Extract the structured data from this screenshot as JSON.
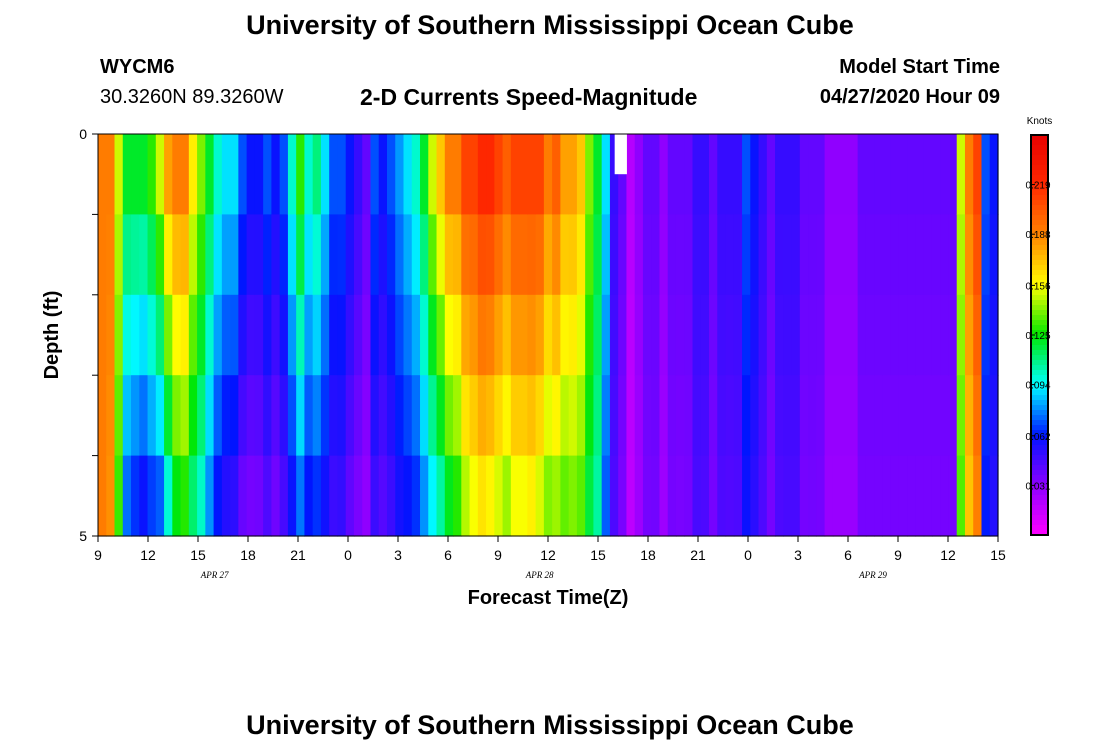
{
  "header": {
    "title": "University of Southern Mississippi Ocean Cube",
    "station": "WYCM6",
    "coords": "30.3260N 89.3260W",
    "subtitle": "2-D Currents Speed-Magnitude",
    "model_label": "Model Start Time",
    "model_time": "04/27/2020 Hour 09"
  },
  "footer": {
    "title": "University of Southern Mississippi Ocean Cube"
  },
  "chart_data": {
    "type": "heatmap",
    "title": "2-D Currents Speed-Magnitude",
    "xlabel": "Forecast Time(Z)",
    "ylabel": "Depth (ft)",
    "x_ticks": [
      "9",
      "12",
      "15",
      "18",
      "21",
      "0",
      "3",
      "6",
      "9",
      "12",
      "15",
      "18",
      "21",
      "0",
      "3",
      "6",
      "9",
      "12",
      "15"
    ],
    "x_tick_hours": [
      0,
      3,
      6,
      9,
      12,
      15,
      18,
      21,
      24,
      27,
      30,
      33,
      36,
      39,
      42,
      45,
      48,
      51,
      54
    ],
    "date_labels": [
      {
        "label": "APR 27",
        "hour": 7
      },
      {
        "label": "APR 28",
        "hour": 26.5
      },
      {
        "label": "APR 29",
        "hour": 46.5
      }
    ],
    "y_ticks": [
      "0",
      "5"
    ],
    "ylim": [
      0,
      5
    ],
    "xlim_hours": [
      0,
      54
    ],
    "colorbar": {
      "label": "Knots",
      "ticks": [
        "0.219",
        "0.188",
        "0.156",
        "0.125",
        "0.094",
        "0.062",
        "0.031"
      ],
      "tick_values": [
        0.219,
        0.188,
        0.156,
        0.125,
        0.094,
        0.062,
        0.031
      ],
      "range": [
        0.0,
        0.25
      ]
    },
    "depth_layers": 5,
    "missing": [
      {
        "hour": 31,
        "layer": 0
      }
    ],
    "profiles": [
      0.19,
      0.19,
      0.15,
      0.12,
      0.12,
      0.12,
      0.13,
      0.15,
      0.18,
      0.19,
      0.19,
      0.16,
      0.14,
      0.12,
      0.1,
      0.09,
      0.09,
      0.07,
      0.06,
      0.06,
      0.07,
      0.06,
      0.07,
      0.1,
      0.13,
      0.1,
      0.11,
      0.09,
      0.07,
      0.07,
      0.06,
      0.05,
      0.04,
      0.07,
      0.06,
      0.07,
      0.08,
      0.09,
      0.1,
      0.12,
      0.15,
      0.17,
      0.19,
      0.19,
      0.21,
      0.21,
      0.22,
      0.22,
      0.21,
      0.2,
      0.21,
      0.21,
      0.21,
      0.21,
      0.19,
      0.2,
      0.18,
      0.18,
      0.17,
      0.14,
      0.12,
      0.09,
      0.05,
      0.04,
      0.02,
      0.03,
      0.04,
      0.04,
      0.03,
      0.04,
      0.04,
      0.04,
      0.05,
      0.05,
      0.04,
      0.05,
      0.05,
      0.05,
      0.07,
      0.06,
      0.05,
      0.04,
      0.05,
      0.05,
      0.05,
      0.04,
      0.04,
      0.04,
      0.03,
      0.03,
      0.03,
      0.03,
      0.04,
      0.04,
      0.04,
      0.04,
      0.04,
      0.04,
      0.04,
      0.04,
      0.04,
      0.04,
      0.04,
      0.04,
      0.15,
      0.19,
      0.21,
      0.07,
      0.06
    ],
    "depth_factors": [
      [
        1.0,
        0.97,
        0.88,
        0.62,
        0.55,
        0.5,
        0.52,
        0.48,
        0.55,
        0.65,
        0.68,
        0.7,
        0.72,
        0.66,
        0.62,
        0.6,
        0.58,
        0.56,
        0.6,
        0.62,
        0.64,
        0.62,
        0.66,
        0.6,
        0.58,
        0.62,
        0.6,
        0.65,
        0.7,
        0.72,
        0.68,
        0.7,
        0.75,
        0.7,
        0.72,
        0.7,
        0.72,
        0.68,
        0.66,
        0.66,
        0.62,
        0.62,
        0.64,
        0.68,
        0.7,
        0.74,
        0.74,
        0.72,
        0.72,
        0.72,
        0.74,
        0.74,
        0.76,
        0.72,
        0.74,
        0.72,
        0.76,
        0.78,
        0.8,
        0.84,
        0.88,
        0.8,
        0.9,
        0.88,
        0.9,
        0.88,
        0.9,
        0.92,
        0.88,
        0.9,
        0.88,
        0.9,
        0.92,
        0.9,
        0.9,
        0.9,
        0.88,
        0.9,
        0.85,
        0.88,
        0.9,
        0.9,
        0.9,
        0.92,
        0.92,
        0.9,
        0.92,
        0.9,
        0.92,
        0.92,
        0.92,
        0.92,
        0.9,
        0.9,
        0.9,
        0.9,
        0.9,
        0.9,
        0.9,
        0.9,
        0.9,
        0.9,
        0.9,
        0.9,
        0.9,
        0.9,
        0.9,
        0.9,
        0.9
      ]
    ]
  }
}
